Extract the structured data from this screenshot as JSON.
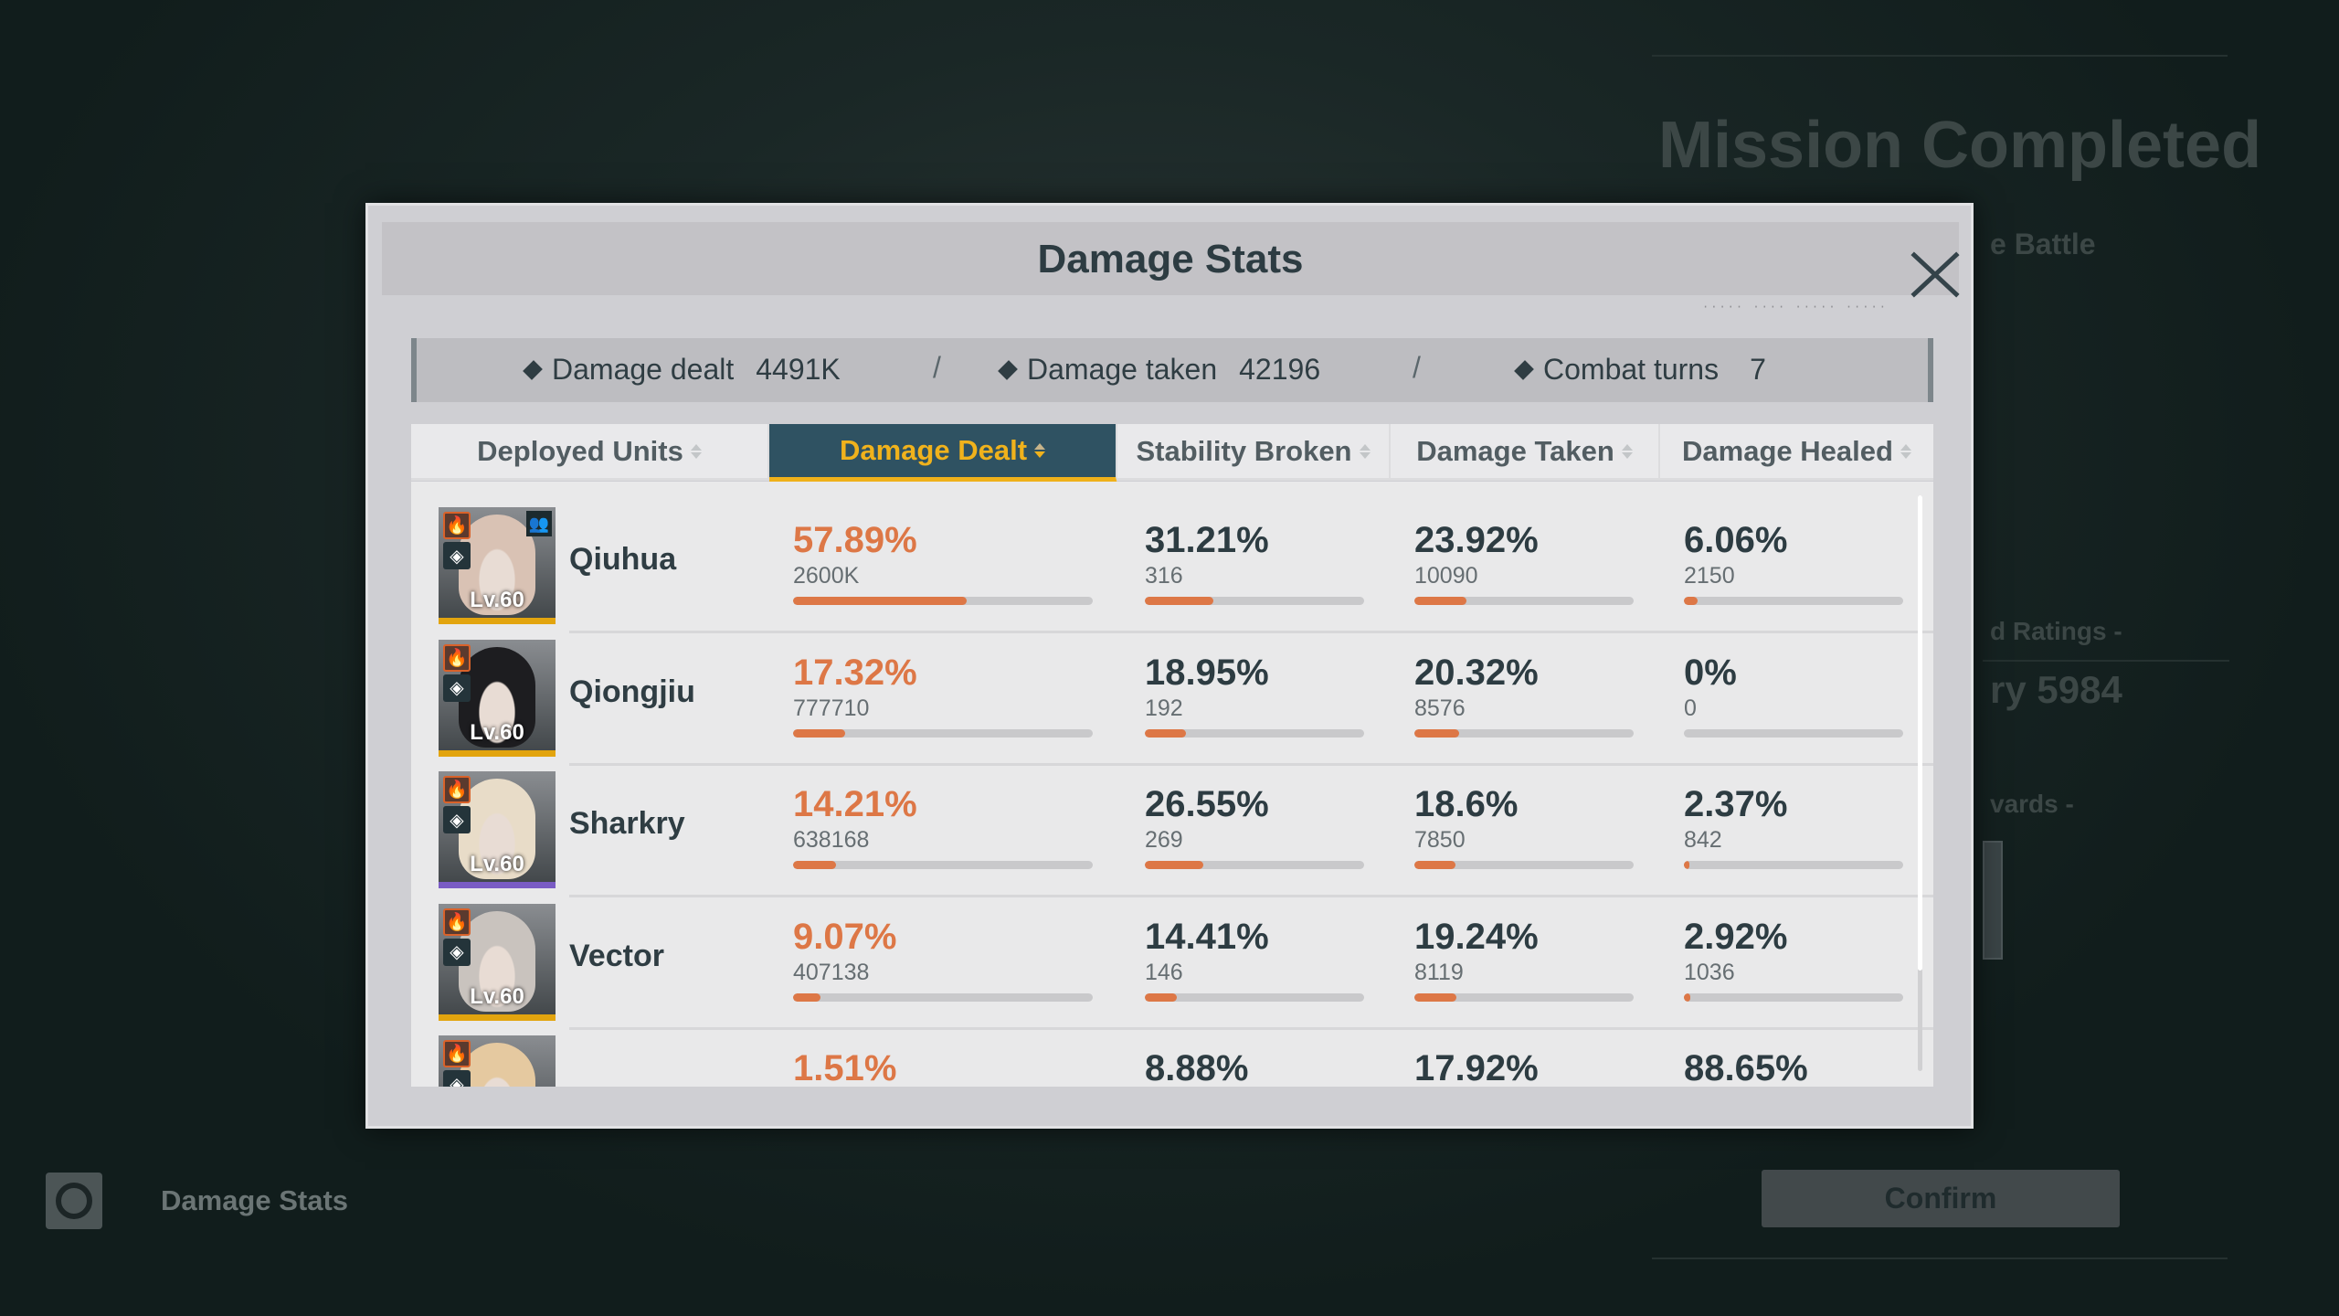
{
  "background": {
    "mission_title": "Mission Completed",
    "subtitle_partial": "e Battle",
    "ratings_partial": "d Ratings -",
    "rating_value_partial": "ry 5984",
    "rewards_partial": "vards -",
    "bottom_left_label": "Damage Stats",
    "bottom_left_icon": "camera-shutter-icon",
    "confirm_label": "Confirm"
  },
  "modal": {
    "title": "Damage Stats",
    "close_icon": "close-icon",
    "summary": {
      "damage_dealt_label": "Damage dealt",
      "damage_dealt_value": "4491K",
      "damage_taken_label": "Damage taken",
      "damage_taken_value": "42196",
      "combat_turns_label": "Combat turns",
      "combat_turns_value": "7",
      "separator": "/"
    },
    "columns": [
      "Deployed Units",
      "Damage Dealt",
      "Stability Broken",
      "Damage Taken",
      "Damage Healed"
    ],
    "active_column": "Damage Dealt",
    "colors": {
      "accent": "#dd7746",
      "active_tab_bg": "#2f5262",
      "active_tab_text": "#f0b21c"
    },
    "units": [
      {
        "name": "Qiuhua",
        "level": "Lv.60",
        "rarity_color": "#e2a40e",
        "hair": "#d9c2b4",
        "leader": true,
        "dealt": {
          "pct": "57.89%",
          "value": "2600K",
          "fill": 57.89
        },
        "stability": {
          "pct": "31.21%",
          "value": "316",
          "fill": 31.21
        },
        "taken": {
          "pct": "23.92%",
          "value": "10090",
          "fill": 23.92
        },
        "healed": {
          "pct": "6.06%",
          "value": "2150",
          "fill": 6.06
        }
      },
      {
        "name": "Qiongjiu",
        "level": "Lv.60",
        "rarity_color": "#e2a40e",
        "hair": "#1d1d20",
        "leader": false,
        "dealt": {
          "pct": "17.32%",
          "value": "777710",
          "fill": 17.32
        },
        "stability": {
          "pct": "18.95%",
          "value": "192",
          "fill": 18.95
        },
        "taken": {
          "pct": "20.32%",
          "value": "8576",
          "fill": 20.32
        },
        "healed": {
          "pct": "0%",
          "value": "0",
          "fill": 0
        }
      },
      {
        "name": "Sharkry",
        "level": "Lv.60",
        "rarity_color": "#7a5cc4",
        "hair": "#e8dcc8",
        "leader": false,
        "dealt": {
          "pct": "14.21%",
          "value": "638168",
          "fill": 14.21
        },
        "stability": {
          "pct": "26.55%",
          "value": "269",
          "fill": 26.55
        },
        "taken": {
          "pct": "18.6%",
          "value": "7850",
          "fill": 18.6
        },
        "healed": {
          "pct": "2.37%",
          "value": "842",
          "fill": 2.37
        }
      },
      {
        "name": "Vector",
        "level": "Lv.60",
        "rarity_color": "#e2a40e",
        "hair": "#c9c3be",
        "leader": false,
        "dealt": {
          "pct": "9.07%",
          "value": "407138",
          "fill": 9.07
        },
        "stability": {
          "pct": "14.41%",
          "value": "146",
          "fill": 14.41
        },
        "taken": {
          "pct": "19.24%",
          "value": "8119",
          "fill": 19.24
        },
        "healed": {
          "pct": "2.92%",
          "value": "1036",
          "fill": 2.92
        }
      },
      {
        "name": "",
        "level": "",
        "rarity_color": "#e2a40e",
        "hair": "#e5c9a0",
        "leader": false,
        "dealt": {
          "pct": "1.51%",
          "value": "",
          "fill": 1.51
        },
        "stability": {
          "pct": "8.88%",
          "value": "",
          "fill": 8.88
        },
        "taken": {
          "pct": "17.92%",
          "value": "",
          "fill": 17.92
        },
        "healed": {
          "pct": "88.65%",
          "value": "",
          "fill": 88.65
        }
      }
    ]
  }
}
